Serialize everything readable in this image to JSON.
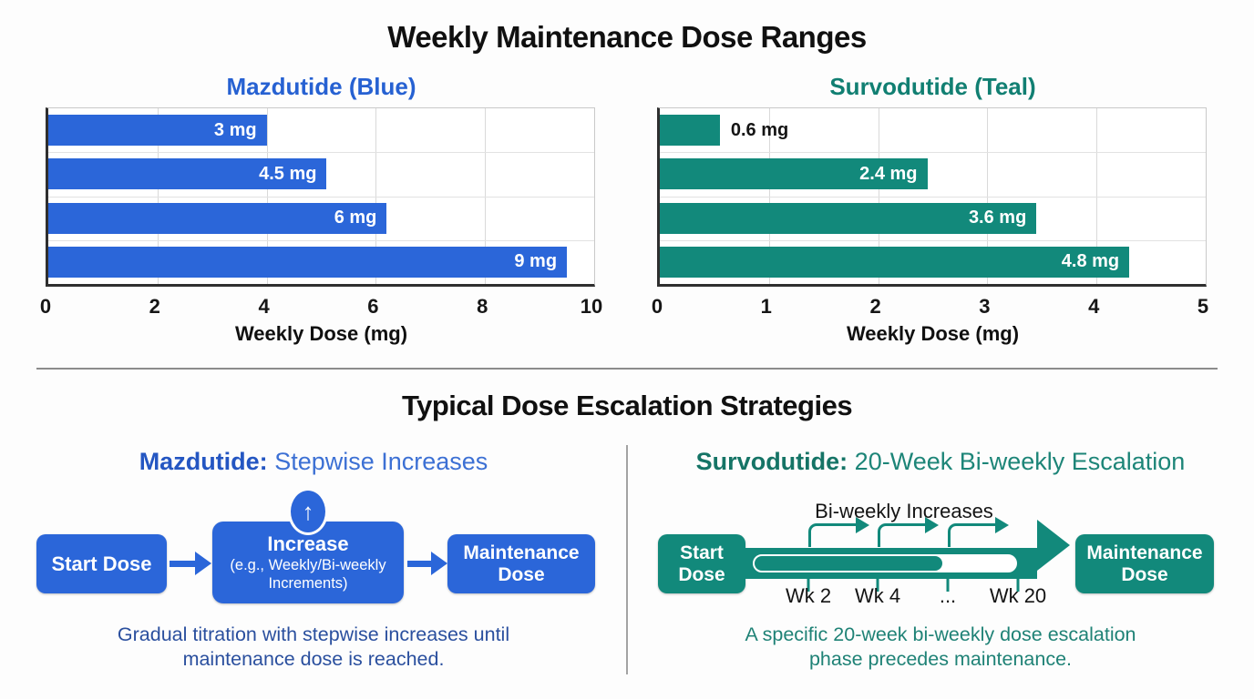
{
  "page": {
    "title": "Weekly Maintenance Dose Ranges",
    "section2_title": "Typical Dose Escalation Strategies"
  },
  "colors": {
    "blue": "#2b66d9",
    "blue_chart_title": "#2661d2",
    "blue_heading_bold": "#2456c2",
    "blue_heading_rest": "#3c70d4",
    "blue_caption": "#2a4f9e",
    "teal": "#12897b",
    "teal_chart_title": "#117f72",
    "teal_heading_bold": "#157466",
    "teal_heading_rest": "#1d8578",
    "teal_caption": "#1f8276",
    "title_black": "#101010",
    "grid": "#d9d9d9",
    "axis_dark": "#2f2f2f"
  },
  "chart_data": [
    {
      "type": "bar",
      "orientation": "horizontal",
      "title": "Mazdutide (Blue)",
      "categories": [
        "3 mg",
        "4.5 mg",
        "6 mg",
        "9 mg"
      ],
      "values": [
        3,
        4.5,
        6,
        9
      ],
      "bar_end_positions": [
        4.0,
        5.1,
        6.2,
        9.5
      ],
      "label_inside": [
        true,
        true,
        true,
        true
      ],
      "bar_color": "#2b66d9",
      "xlabel": "Weekly Dose (mg)",
      "xlim": [
        0,
        10
      ],
      "xticks": [
        0,
        2,
        4,
        6,
        8,
        10
      ],
      "grid": true,
      "legend": "none"
    },
    {
      "type": "bar",
      "orientation": "horizontal",
      "title": "Survodutide (Teal)",
      "categories": [
        "0.6 mg",
        "2.4 mg",
        "3.6 mg",
        "4.8 mg"
      ],
      "values": [
        0.6,
        2.4,
        3.6,
        4.8
      ],
      "bar_end_positions": [
        0.55,
        2.45,
        3.45,
        4.3
      ],
      "label_inside": [
        false,
        true,
        true,
        true
      ],
      "bar_color": "#12897b",
      "xlabel": "Weekly Dose (mg)",
      "xlim": [
        0,
        5
      ],
      "xticks": [
        0,
        1,
        2,
        3,
        4,
        5
      ],
      "grid": true,
      "legend": "none"
    }
  ],
  "left_diagram": {
    "heading_bold": "Mazdutide:",
    "heading_rest": " Stepwise Increases",
    "start_box": "Start Dose",
    "increase_title": "Increase",
    "increase_sub1": "(e.g., Weekly/Bi-weekly",
    "increase_sub2": "Increments)",
    "up_arrow": "↑",
    "maintenance_line1": "Maintenance",
    "maintenance_line2": "Dose",
    "caption1": "Gradual titration with stepwise increases until",
    "caption2": "maintenance dose is reached."
  },
  "right_diagram": {
    "heading_bold": "Survodutide:",
    "heading_rest": " 20-Week Bi-weekly Escalation",
    "timeline_label": "Bi-weekly Increases",
    "start_line1": "Start",
    "start_line2": "Dose",
    "maintenance_line1": "Maintenance",
    "maintenance_line2": "Dose",
    "week_labels": [
      "Wk 2",
      "Wk 4",
      "...",
      "Wk 20"
    ],
    "step_arrow_count": 3,
    "timeline_fill_ratio": 0.72,
    "caption1": "A specific 20-week bi-weekly dose escalation",
    "caption2": "phase precedes maintenance."
  }
}
